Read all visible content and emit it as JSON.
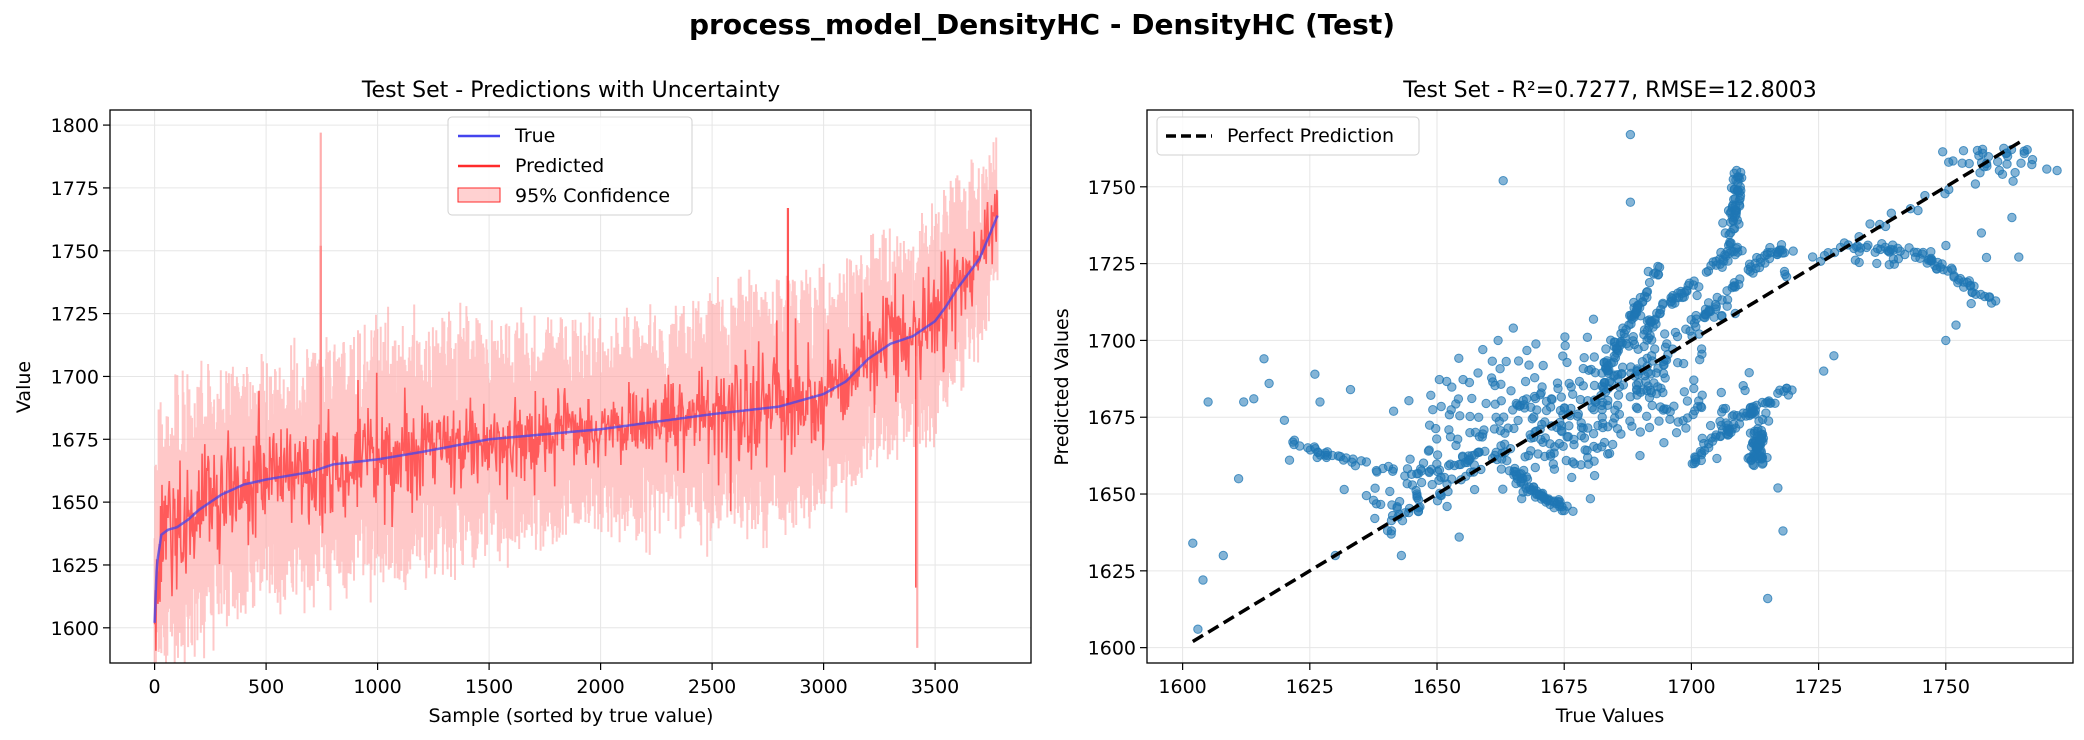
{
  "figure": {
    "title": "process_model_DensityHC - DensityHC (Test)"
  },
  "colors": {
    "true_line": "#4444ee",
    "pred_line": "#ff2b2b",
    "band": "#ff9a9a",
    "scatter": "#1f77b4",
    "ideal": "#000000",
    "grid": "#e6e6e6"
  },
  "chart_data": [
    {
      "type": "line",
      "title": "Test Set - Predictions with Uncertainty",
      "xlabel": "Sample (sorted by true value)",
      "ylabel": "Value",
      "xlim": [
        -200,
        3930
      ],
      "ylim": [
        1586,
        1806
      ],
      "xticks": [
        0,
        500,
        1000,
        1500,
        2000,
        2500,
        3000,
        3500
      ],
      "yticks": [
        1600,
        1625,
        1650,
        1675,
        1700,
        1725,
        1750,
        1775,
        1800
      ],
      "grid": true,
      "legend": {
        "placement": "upper-center",
        "entries": [
          "True",
          "Predicted",
          "95% Confidence"
        ]
      },
      "n_samples": 3780,
      "true_curve": {
        "x": [
          0,
          10,
          30,
          60,
          100,
          150,
          200,
          300,
          400,
          500,
          700,
          800,
          1000,
          1200,
          1500,
          2000,
          2500,
          2800,
          3000,
          3100,
          3200,
          3300,
          3400,
          3500,
          3550,
          3600,
          3700,
          3780
        ],
        "y": [
          1602,
          1625,
          1637,
          1639,
          1640,
          1643,
          1647,
          1653,
          1657,
          1659,
          1662,
          1665,
          1667,
          1670,
          1675,
          1679,
          1685,
          1688,
          1693,
          1698,
          1707,
          1713,
          1716,
          1722,
          1728,
          1735,
          1747,
          1764
        ]
      },
      "prediction_spread": {
        "x": [
          0,
          500,
          1000,
          2000,
          2700,
          3000,
          3500,
          3780
        ],
        "halfwidth": [
          35,
          20,
          25,
          15,
          25,
          20,
          25,
          15
        ]
      },
      "confidence_spread": {
        "x": [
          0,
          500,
          1000,
          2000,
          2700,
          3000,
          3500,
          3780
        ],
        "halfwidth": [
          55,
          45,
          50,
          40,
          50,
          45,
          45,
          30
        ]
      },
      "spikes": [
        {
          "x": 745,
          "y": 1752
        },
        {
          "x": 745,
          "y": 1797
        },
        {
          "x": 2840,
          "y": 1767
        },
        {
          "x": 3415,
          "y": 1616
        },
        {
          "x": 3420,
          "y": 1592
        }
      ]
    },
    {
      "type": "scatter",
      "title": "Test Set - R²=0.7277, RMSE=12.8003",
      "xlabel": "True Values",
      "ylabel": "Predicted Values",
      "xlim": [
        1593,
        1775
      ],
      "ylim": [
        1595,
        1775
      ],
      "xticks": [
        1600,
        1625,
        1650,
        1675,
        1700,
        1725,
        1750
      ],
      "yticks": [
        1600,
        1625,
        1650,
        1675,
        1700,
        1725,
        1750
      ],
      "grid": true,
      "legend": {
        "placement": "upper-left",
        "entries": [
          "Perfect Prediction"
        ]
      },
      "ideal_line": {
        "x": [
          1602,
          1765
        ],
        "y": [
          1602,
          1765
        ]
      },
      "clusters": [
        {
          "cx": 1672,
          "cy": 1675,
          "sx": 12,
          "sy": 10,
          "n": 1400
        },
        {
          "cx": 1690,
          "cy": 1692,
          "sx": 8,
          "sy": 9,
          "n": 600
        },
        {
          "cx": 1645,
          "cy": 1650,
          "sx": 5,
          "sy": 7,
          "n": 250
        },
        {
          "cx": 1760,
          "cy": 1758,
          "sx": 4,
          "sy": 4,
          "n": 200
        },
        {
          "cx": 1705,
          "cy": 1678,
          "sx": 8,
          "sy": 5,
          "n": 200
        },
        {
          "cx": 1740,
          "cy": 1728,
          "sx": 10,
          "sy": 2,
          "n": 120
        }
      ],
      "trails": [
        {
          "x": [
            1640,
            1650,
            1660,
            1675,
            1690,
            1700,
            1710,
            1720,
            1730,
            1745,
            1760
          ],
          "y": [
            1640,
            1650,
            1660,
            1676,
            1693,
            1703,
            1712,
            1722,
            1731,
            1745,
            1760
          ]
        },
        {
          "x": [
            1690,
            1695,
            1700,
            1705,
            1710
          ],
          "y": [
            1700,
            1712,
            1718,
            1725,
            1730
          ]
        },
        {
          "x": [
            1683,
            1687,
            1690,
            1694
          ],
          "y": [
            1690,
            1702,
            1712,
            1725
          ]
        },
        {
          "x": [
            1700,
            1705,
            1710,
            1715,
            1720
          ],
          "y": [
            1705,
            1712,
            1720,
            1728,
            1730
          ]
        },
        {
          "x": [
            1700,
            1705,
            1710,
            1715,
            1720
          ],
          "y": [
            1660,
            1668,
            1675,
            1680,
            1685
          ]
        },
        {
          "x": [
            1730,
            1738,
            1745,
            1750,
            1755,
            1760
          ],
          "y": [
            1730,
            1730,
            1728,
            1723,
            1717,
            1712
          ]
        },
        {
          "x": [
            1620,
            1628,
            1635,
            1645,
            1655,
            1660
          ],
          "y": [
            1668,
            1663,
            1660,
            1657,
            1660,
            1665
          ]
        },
        {
          "x": [
            1706,
            1708,
            1709,
            1709
          ],
          "y": [
            1725,
            1738,
            1746,
            1755
          ]
        },
        {
          "x": [
            1712,
            1713,
            1713,
            1714
          ],
          "y": [
            1660,
            1665,
            1670,
            1660
          ]
        },
        {
          "x": [
            1665,
            1668,
            1672,
            1676
          ],
          "y": [
            1658,
            1652,
            1648,
            1645
          ]
        }
      ],
      "outliers": [
        {
          "x": 1602,
          "y": 1634
        },
        {
          "x": 1603,
          "y": 1606
        },
        {
          "x": 1605,
          "y": 1680
        },
        {
          "x": 1604,
          "y": 1622
        },
        {
          "x": 1608,
          "y": 1630
        },
        {
          "x": 1611,
          "y": 1655
        },
        {
          "x": 1612,
          "y": 1680
        },
        {
          "x": 1616,
          "y": 1694
        },
        {
          "x": 1614,
          "y": 1681
        },
        {
          "x": 1617,
          "y": 1686
        },
        {
          "x": 1620,
          "y": 1674
        },
        {
          "x": 1621,
          "y": 1661
        },
        {
          "x": 1626,
          "y": 1689
        },
        {
          "x": 1627,
          "y": 1680
        },
        {
          "x": 1630,
          "y": 1630
        },
        {
          "x": 1633,
          "y": 1684
        },
        {
          "x": 1663,
          "y": 1752
        },
        {
          "x": 1688,
          "y": 1767
        },
        {
          "x": 1688,
          "y": 1745
        },
        {
          "x": 1715,
          "y": 1616
        },
        {
          "x": 1717,
          "y": 1652
        },
        {
          "x": 1718,
          "y": 1638
        },
        {
          "x": 1750,
          "y": 1700
        },
        {
          "x": 1752,
          "y": 1705
        },
        {
          "x": 1755,
          "y": 1712
        },
        {
          "x": 1757,
          "y": 1735
        },
        {
          "x": 1758,
          "y": 1727
        },
        {
          "x": 1763,
          "y": 1740
        },
        {
          "x": 1643,
          "y": 1630
        },
        {
          "x": 1641,
          "y": 1637
        },
        {
          "x": 1665,
          "y": 1704
        },
        {
          "x": 1662,
          "y": 1700
        },
        {
          "x": 1659,
          "y": 1697
        },
        {
          "x": 1728,
          "y": 1695
        },
        {
          "x": 1726,
          "y": 1690
        },
        {
          "x": 1712,
          "y": 1678
        }
      ]
    }
  ]
}
